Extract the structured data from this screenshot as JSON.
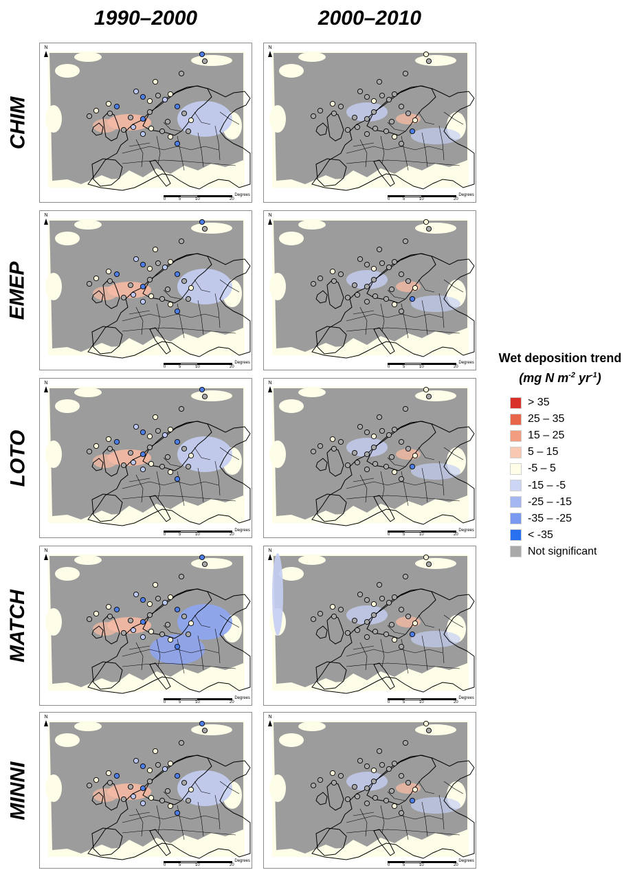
{
  "columns": [
    "1990–2000",
    "2000–2010"
  ],
  "rows": [
    "CHIM",
    "EMEP",
    "LOTO",
    "MATCH",
    "MINNI"
  ],
  "map": {
    "north_label": "N",
    "scale_labels": [
      "0",
      "5",
      "10",
      "20"
    ],
    "scale_unit": "Degrees"
  },
  "legend": {
    "title": "Wet deposition trend",
    "unit_prefix": "(mg N m",
    "unit_exp1": "-2",
    "unit_mid": " yr",
    "unit_exp2": "-1",
    "unit_suffix": ")",
    "items": [
      {
        "label": "> 35",
        "color": "#d9302a"
      },
      {
        "label": "25 – 35",
        "color": "#e8654a"
      },
      {
        "label": "15 – 25",
        "color": "#f29c80"
      },
      {
        "label": "5 – 15",
        "color": "#f8c8b2"
      },
      {
        "label": "-5 – 5",
        "color": "#fdfde8"
      },
      {
        "label": "-15 – -5",
        "color": "#cdd5f4"
      },
      {
        "label": "-25 – -15",
        "color": "#a4b7f3"
      },
      {
        "label": "-35 – -25",
        "color": "#7a99f0"
      },
      {
        "label": "< -35",
        "color": "#2870f0"
      },
      {
        "label": "Not significant",
        "color": "#a9a9a9"
      }
    ]
  },
  "colors": {
    "not_significant": "#9c9c9c",
    "neutral": "#fdfde8",
    "red_light": "#f5b9a4",
    "blue_light": "#c5cef4",
    "blue_mid": "#8ea6f2",
    "station_neutral": "#fbf7d8",
    "station_gray": "#a7a7a7",
    "station_blue": "#4d7ee6",
    "station_lightblue": "#bcc8f2"
  }
}
